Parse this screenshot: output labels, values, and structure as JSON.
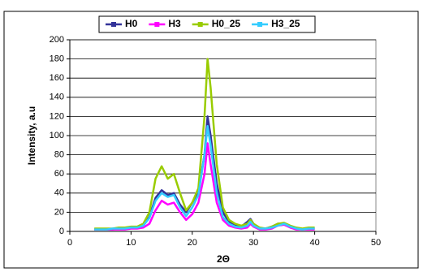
{
  "chart_data": {
    "type": "line",
    "x_label": "2Θ",
    "y_label": "Intensity, a.u",
    "x": [
      4,
      5,
      6,
      7,
      8,
      9,
      10,
      11,
      12,
      13,
      14,
      15,
      16,
      17,
      18,
      19,
      20,
      21,
      22,
      22.5,
      23,
      24,
      25,
      26,
      27,
      28,
      29,
      29.5,
      30,
      31,
      32,
      33,
      34,
      35,
      36,
      37,
      38,
      39,
      40
    ],
    "series": [
      {
        "name": "H0",
        "color": "#333399",
        "values": [
          2,
          2,
          2,
          2,
          3,
          3,
          4,
          4,
          6,
          15,
          35,
          43,
          38,
          40,
          28,
          20,
          30,
          42,
          80,
          120,
          100,
          50,
          20,
          10,
          6,
          5,
          10,
          13,
          8,
          3,
          3,
          5,
          8,
          8,
          5,
          3,
          2,
          3,
          3
        ]
      },
      {
        "name": "H3",
        "color": "#ff00ff",
        "values": [
          2,
          2,
          2,
          2,
          2,
          2,
          3,
          3,
          4,
          8,
          22,
          32,
          28,
          30,
          20,
          12,
          18,
          30,
          60,
          92,
          70,
          30,
          12,
          6,
          4,
          3,
          4,
          8,
          5,
          2,
          2,
          3,
          6,
          7,
          4,
          2,
          2,
          2,
          2
        ]
      },
      {
        "name": "H0_25",
        "color": "#99cc00",
        "values": [
          3,
          3,
          3,
          3,
          4,
          4,
          5,
          5,
          8,
          20,
          55,
          68,
          55,
          60,
          40,
          22,
          30,
          45,
          120,
          180,
          150,
          70,
          25,
          12,
          8,
          6,
          8,
          12,
          8,
          4,
          3,
          5,
          8,
          9,
          6,
          4,
          3,
          4,
          4
        ]
      },
      {
        "name": "H3_25",
        "color": "#33ccff",
        "values": [
          2,
          2,
          2,
          3,
          3,
          3,
          4,
          4,
          6,
          14,
          32,
          40,
          36,
          38,
          25,
          16,
          25,
          38,
          80,
          110,
          90,
          40,
          15,
          8,
          5,
          4,
          6,
          10,
          6,
          3,
          3,
          4,
          6,
          8,
          5,
          3,
          2,
          3,
          3
        ]
      }
    ],
    "xlim": [
      0,
      50
    ],
    "xticks": [
      0,
      10,
      20,
      30,
      40,
      50
    ],
    "ylim": [
      0,
      200
    ],
    "yticks": [
      0,
      20,
      40,
      60,
      80,
      100,
      120,
      140,
      160,
      180,
      200
    ],
    "grid": true,
    "legend": "top"
  }
}
